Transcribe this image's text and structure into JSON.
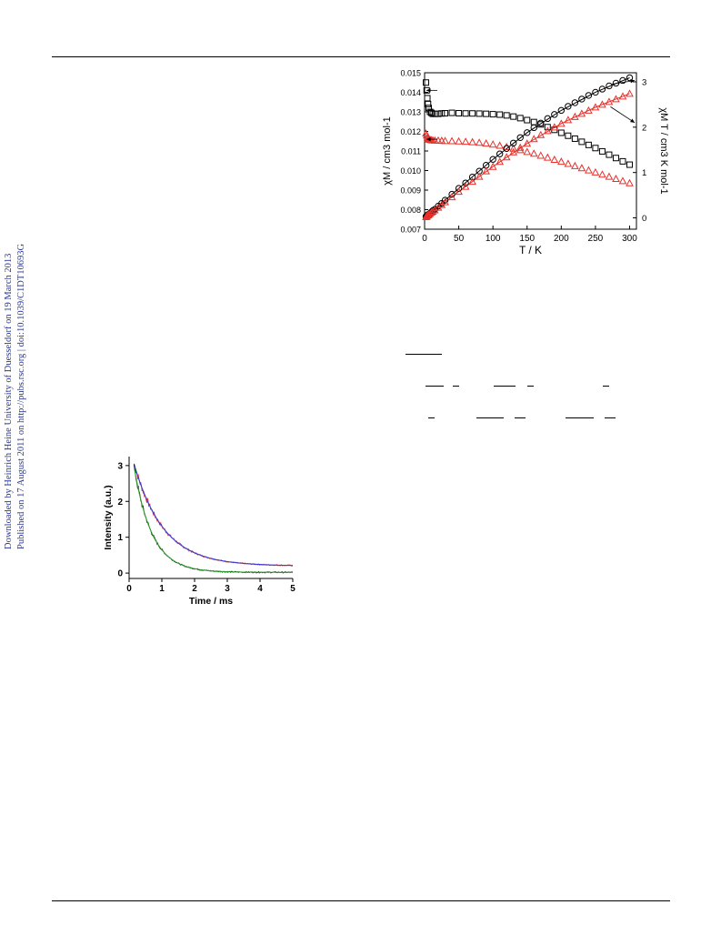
{
  "side_notes": {
    "downloaded": "Downloaded by Heinrich Heine University of Duesseldorf on 19 March 2013",
    "published": "Published on 17 August 2011 on http://pubs.rsc.org | doi:10.1039/C1DT10693G"
  },
  "colors": {
    "black": "#000000",
    "red": "#e8302a",
    "blue": "#3b3bd6",
    "green": "#2ca02c",
    "side_text": "#2a3a9a"
  },
  "chart_data": [
    {
      "type": "scatter",
      "xlabel": "T / K",
      "ylabel_left": "χM / cm3 mol-1",
      "ylabel_right": "χM T / cm3 K mol-1",
      "xlim": [
        0,
        310
      ],
      "ylim_left": [
        0.007,
        0.015
      ],
      "ylim_right": [
        -0.25,
        3.2
      ],
      "x_ticks": [
        0,
        50,
        100,
        150,
        200,
        250,
        300
      ],
      "y_ticks_left": [
        "0.007",
        "0.008",
        "0.009",
        "0.010",
        "0.011",
        "0.012",
        "0.013",
        "0.014",
        "0.015"
      ],
      "y_ticks_right": [
        0,
        1,
        2,
        3
      ],
      "series": [
        {
          "marker": "square",
          "color": "#000000",
          "axis": "left",
          "x": [
            2,
            3,
            4,
            5,
            6,
            8,
            10,
            12,
            15,
            20,
            25,
            30,
            40,
            50,
            60,
            70,
            80,
            90,
            100,
            110,
            120,
            130,
            140,
            150,
            160,
            170,
            180,
            190,
            200,
            210,
            220,
            230,
            240,
            250,
            260,
            270,
            280,
            290,
            300
          ],
          "y": [
            0.0145,
            0.0141,
            0.0137,
            0.0134,
            0.0132,
            0.013,
            0.01295,
            0.0129,
            0.0129,
            0.0129,
            0.01292,
            0.01293,
            0.01295,
            0.01293,
            0.01292,
            0.01292,
            0.01291,
            0.0129,
            0.01288,
            0.01286,
            0.01282,
            0.01276,
            0.01268,
            0.01258,
            0.01248,
            0.01236,
            0.01222,
            0.01208,
            0.01193,
            0.01178,
            0.01163,
            0.01147,
            0.01131,
            0.01115,
            0.01098,
            0.01081,
            0.01064,
            0.01047,
            0.0103
          ]
        },
        {
          "marker": "triangle",
          "color": "#e8302a",
          "axis": "left",
          "x": [
            2,
            3,
            4,
            5,
            6,
            8,
            10,
            12,
            15,
            20,
            25,
            30,
            40,
            50,
            60,
            70,
            80,
            90,
            100,
            110,
            120,
            130,
            140,
            150,
            160,
            170,
            180,
            190,
            200,
            210,
            220,
            230,
            240,
            250,
            260,
            270,
            280,
            290,
            300
          ],
          "y": [
            0.0119,
            0.0118,
            0.0117,
            0.01165,
            0.0116,
            0.01158,
            0.01156,
            0.01155,
            0.01154,
            0.01154,
            0.01153,
            0.01152,
            0.01151,
            0.0115,
            0.01148,
            0.01146,
            0.01143,
            0.01139,
            0.01134,
            0.01128,
            0.01121,
            0.01113,
            0.01105,
            0.01096,
            0.01087,
            0.01077,
            0.01067,
            0.01056,
            0.01046,
            0.01035,
            0.01024,
            0.01013,
            0.01002,
            0.00991,
            0.0098,
            0.00969,
            0.00958,
            0.00947,
            0.00936
          ]
        },
        {
          "marker": "circle",
          "color": "#000000",
          "axis": "right",
          "x": [
            2,
            3,
            4,
            5,
            6,
            8,
            10,
            12,
            15,
            20,
            25,
            30,
            40,
            50,
            60,
            70,
            80,
            90,
            100,
            110,
            120,
            130,
            140,
            150,
            160,
            170,
            180,
            190,
            200,
            210,
            220,
            230,
            240,
            250,
            260,
            270,
            280,
            290,
            300
          ],
          "y": [
            0.03,
            0.04,
            0.06,
            0.07,
            0.08,
            0.1,
            0.13,
            0.16,
            0.19,
            0.26,
            0.32,
            0.39,
            0.52,
            0.65,
            0.77,
            0.9,
            1.03,
            1.16,
            1.29,
            1.41,
            1.53,
            1.65,
            1.77,
            1.88,
            1.99,
            2.09,
            2.19,
            2.28,
            2.37,
            2.46,
            2.54,
            2.62,
            2.7,
            2.77,
            2.84,
            2.91,
            2.97,
            3.03,
            3.09
          ]
        },
        {
          "marker": "triangle",
          "color": "#e8302a",
          "axis": "right",
          "x": [
            2,
            3,
            4,
            5,
            6,
            8,
            10,
            12,
            15,
            20,
            25,
            30,
            40,
            50,
            60,
            70,
            80,
            90,
            100,
            110,
            120,
            130,
            140,
            150,
            160,
            170,
            180,
            190,
            200,
            210,
            220,
            230,
            240,
            250,
            260,
            270,
            280,
            290,
            300
          ],
          "y": [
            0.02,
            0.03,
            0.05,
            0.06,
            0.07,
            0.09,
            0.12,
            0.14,
            0.17,
            0.23,
            0.29,
            0.35,
            0.46,
            0.58,
            0.69,
            0.8,
            0.91,
            1.03,
            1.13,
            1.24,
            1.34,
            1.45,
            1.55,
            1.64,
            1.74,
            1.83,
            1.92,
            2.0,
            2.08,
            2.16,
            2.23,
            2.3,
            2.37,
            2.44,
            2.5,
            2.56,
            2.62,
            2.68,
            2.74
          ]
        }
      ],
      "fit_curves": [
        {
          "color": "#000000",
          "axis": "right",
          "x": [
            2,
            20,
            50,
            100,
            150,
            200,
            250,
            300
          ],
          "y": [
            0.03,
            0.26,
            0.65,
            1.29,
            1.88,
            2.37,
            2.77,
            3.09
          ]
        },
        {
          "color": "#e8302a",
          "axis": "right",
          "x": [
            2,
            20,
            50,
            100,
            150,
            200,
            250,
            300
          ],
          "y": [
            0.02,
            0.23,
            0.58,
            1.13,
            1.64,
            2.08,
            2.44,
            2.74
          ]
        }
      ]
    },
    {
      "type": "line",
      "xlabel": "Time / ms",
      "ylabel": "Intensity (a.u.)",
      "xlim": [
        0,
        5
      ],
      "ylim": [
        -0.15,
        3.25
      ],
      "x_ticks": [
        0,
        1,
        2,
        3,
        4,
        5
      ],
      "y_ticks": [
        0,
        1,
        2,
        3
      ],
      "series": [
        {
          "color": "#e8302a",
          "role": "data",
          "tau": 0.9,
          "offset": 0.2,
          "amp": 2.85,
          "x": [
            0.15,
            5
          ]
        },
        {
          "color": "#3b3bd6",
          "role": "fit",
          "tau": 0.9,
          "offset": 0.2,
          "amp": 2.85,
          "x": [
            0.15,
            5
          ]
        },
        {
          "color": "#000000",
          "role": "data",
          "tau": 0.55,
          "offset": 0.02,
          "amp": 2.95,
          "x": [
            0.15,
            5
          ]
        },
        {
          "color": "#2ca02c",
          "role": "fit",
          "tau": 0.55,
          "offset": 0.02,
          "amp": 2.95,
          "x": [
            0.15,
            5
          ]
        }
      ]
    }
  ]
}
